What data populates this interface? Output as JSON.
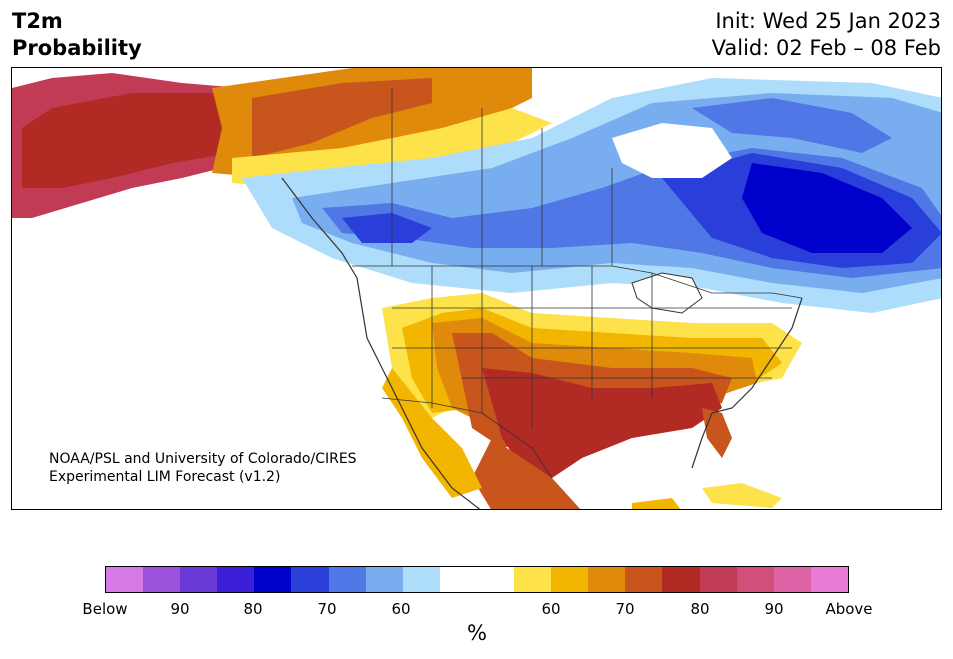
{
  "header": {
    "title_line1": "T2m",
    "title_line2": "Probability",
    "init": "Init: Wed 25 Jan 2023",
    "valid": "Valid: 02 Feb – 08 Feb"
  },
  "credit": {
    "line1": "NOAA/PSL and University of Colorado/CIRES",
    "line2": "Experimental LIM Forecast (v1.2)"
  },
  "colorbar": {
    "colors": [
      "#d77ae8",
      "#9a52dc",
      "#6b3ad6",
      "#3a1fd6",
      "#0000cd",
      "#2a3fd9",
      "#4f77e6",
      "#78aeef",
      "#aedcfb",
      "#ffffff",
      "#ffffff",
      "#fde24a",
      "#f2b600",
      "#e08a0c",
      "#c8561c",
      "#b22a24",
      "#c13b55",
      "#d0507a",
      "#dd62a6",
      "#e97ad8"
    ],
    "ticks": [
      "Below",
      "90",
      "80",
      "70",
      "60",
      "60",
      "70",
      "80",
      "90",
      "Above"
    ],
    "unit": "%"
  }
}
